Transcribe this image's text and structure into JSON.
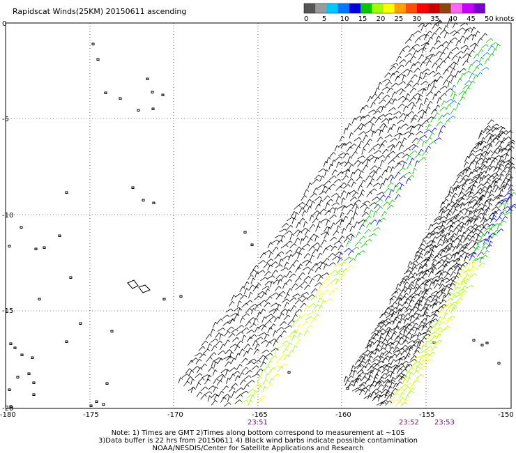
{
  "title": "Rapidscat Winds(25KM) 20150611 ascending",
  "colorbar": {
    "labels": [
      "0",
      "5",
      "10",
      "15",
      "20",
      "25",
      "30",
      "35",
      "40",
      "45",
      "50"
    ],
    "unit": "knots",
    "colors": [
      "#555555",
      "#9a9a9a",
      "#00c8ff",
      "#0078ff",
      "#0000dc",
      "#00c800",
      "#a0ff00",
      "#ffff00",
      "#ffa000",
      "#ff5000",
      "#ff0000",
      "#c80000",
      "#8b4513",
      "#ff64ff",
      "#c800ff",
      "#7800c8"
    ]
  },
  "axes": {
    "x_ticks": [
      "-180",
      "-175",
      "-170",
      "-165",
      "-160",
      "-155",
      "-150"
    ],
    "y_ticks": [
      "0",
      "-5",
      "-10",
      "-15",
      "-20"
    ]
  },
  "time_labels": [
    "23:51",
    "23:52",
    "23:53"
  ],
  "notes": {
    "line1": "Note: 1) Times are GMT 2)Times along bottom correspond to measurement at ~10S",
    "line2": "3)Data buffer is 22 hrs from 20150611 4) Black wind barbs indicate possible contamination",
    "line3": "NOAA/NESDIS/Center for Satellite Applications and Research"
  }
}
